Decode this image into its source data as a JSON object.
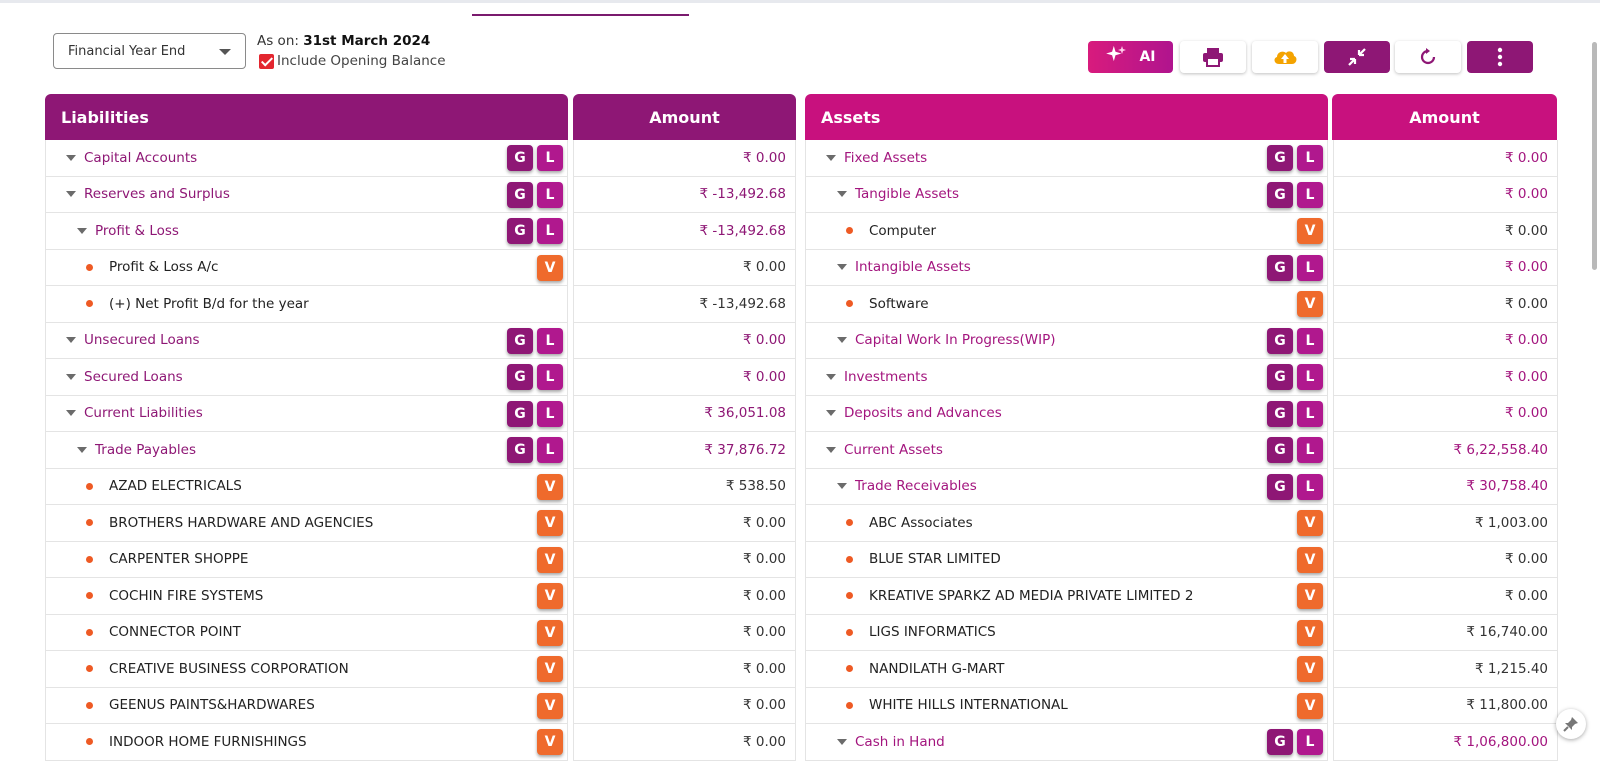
{
  "filters": {
    "period_select": "Financial Year End",
    "as_on_label": "As on:",
    "as_on_date": "31st March 2024",
    "include_opening_balance_label": "Include Opening Balance",
    "include_opening_balance": true
  },
  "toolbar": {
    "ai_label": "AI",
    "buttons": [
      "sparkle-icon",
      "print-icon",
      "cloud-upload-icon",
      "collapse-icon",
      "refresh-icon",
      "more-vertical-icon"
    ]
  },
  "colors": {
    "liabilities_header": "#8e1775",
    "assets_header": "#c8117e",
    "badge_g": "#8e1775",
    "badge_l": "#b0188e",
    "badge_v": "#ef6a2c",
    "leaf_dot": "#ee5a24"
  },
  "liabilities": {
    "header": "Liabilities",
    "amount_header": "Amount",
    "rows": [
      {
        "name": "Capital Accounts",
        "amount": "₹ 0.00",
        "type": "group",
        "level": 0,
        "badges": [
          "G",
          "L"
        ]
      },
      {
        "name": "Reserves and Surplus",
        "amount": "₹ -13,492.68",
        "type": "group",
        "level": 0,
        "badges": [
          "G",
          "L"
        ]
      },
      {
        "name": "Profit & Loss",
        "amount": "₹ -13,492.68",
        "type": "group",
        "level": 1,
        "badges": [
          "G",
          "L"
        ]
      },
      {
        "name": "Profit & Loss A/c",
        "amount": "₹ 0.00",
        "type": "leaf",
        "level": 2,
        "badges": [
          "V"
        ]
      },
      {
        "name": "(+) Net Profit B/d for the year",
        "amount": "₹ -13,492.68",
        "type": "leaf",
        "level": 2,
        "badges": []
      },
      {
        "name": "Unsecured Loans",
        "amount": "₹ 0.00",
        "type": "group",
        "level": 0,
        "badges": [
          "G",
          "L"
        ]
      },
      {
        "name": "Secured Loans",
        "amount": "₹ 0.00",
        "type": "group",
        "level": 0,
        "badges": [
          "G",
          "L"
        ]
      },
      {
        "name": "Current Liabilities",
        "amount": "₹ 36,051.08",
        "type": "group",
        "level": 0,
        "badges": [
          "G",
          "L"
        ]
      },
      {
        "name": "Trade Payables",
        "amount": "₹ 37,876.72",
        "type": "group",
        "level": 1,
        "badges": [
          "G",
          "L"
        ]
      },
      {
        "name": "AZAD ELECTRICALS",
        "amount": "₹ 538.50",
        "type": "leaf",
        "level": 2,
        "badges": [
          "V"
        ]
      },
      {
        "name": "BROTHERS HARDWARE AND AGENCIES",
        "amount": "₹ 0.00",
        "type": "leaf",
        "level": 2,
        "badges": [
          "V"
        ]
      },
      {
        "name": "CARPENTER SHOPPE",
        "amount": "₹ 0.00",
        "type": "leaf",
        "level": 2,
        "badges": [
          "V"
        ]
      },
      {
        "name": "COCHIN FIRE SYSTEMS",
        "amount": "₹ 0.00",
        "type": "leaf",
        "level": 2,
        "badges": [
          "V"
        ]
      },
      {
        "name": "CONNECTOR POINT",
        "amount": "₹ 0.00",
        "type": "leaf",
        "level": 2,
        "badges": [
          "V"
        ]
      },
      {
        "name": "CREATIVE BUSINESS CORPORATION",
        "amount": "₹ 0.00",
        "type": "leaf",
        "level": 2,
        "badges": [
          "V"
        ]
      },
      {
        "name": "GEENUS PAINTS&HARDWARES",
        "amount": "₹ 0.00",
        "type": "leaf",
        "level": 2,
        "badges": [
          "V"
        ]
      },
      {
        "name": "INDOOR HOME FURNISHINGS",
        "amount": "₹ 0.00",
        "type": "leaf",
        "level": 2,
        "badges": [
          "V"
        ]
      }
    ]
  },
  "assets": {
    "header": "Assets",
    "amount_header": "Amount",
    "rows": [
      {
        "name": "Fixed Assets",
        "amount": "₹ 0.00",
        "type": "group",
        "level": 0,
        "badges": [
          "G",
          "L"
        ]
      },
      {
        "name": "Tangible Assets",
        "amount": "₹ 0.00",
        "type": "group",
        "level": 1,
        "badges": [
          "G",
          "L"
        ]
      },
      {
        "name": "Computer",
        "amount": "₹ 0.00",
        "type": "leaf",
        "level": 2,
        "badges": [
          "V"
        ]
      },
      {
        "name": "Intangible Assets",
        "amount": "₹ 0.00",
        "type": "group",
        "level": 1,
        "badges": [
          "G",
          "L"
        ]
      },
      {
        "name": "Software",
        "amount": "₹ 0.00",
        "type": "leaf",
        "level": 2,
        "badges": [
          "V"
        ]
      },
      {
        "name": "Capital Work In Progress(WIP)",
        "amount": "₹ 0.00",
        "type": "group",
        "level": 1,
        "badges": [
          "G",
          "L"
        ]
      },
      {
        "name": "Investments",
        "amount": "₹ 0.00",
        "type": "group",
        "level": 0,
        "badges": [
          "G",
          "L"
        ]
      },
      {
        "name": "Deposits and Advances",
        "amount": "₹ 0.00",
        "type": "group",
        "level": 0,
        "badges": [
          "G",
          "L"
        ]
      },
      {
        "name": "Current Assets",
        "amount": "₹ 6,22,558.40",
        "type": "group",
        "level": 0,
        "badges": [
          "G",
          "L"
        ]
      },
      {
        "name": "Trade Receivables",
        "amount": "₹ 30,758.40",
        "type": "group",
        "level": 1,
        "badges": [
          "G",
          "L"
        ]
      },
      {
        "name": "ABC Associates",
        "amount": "₹ 1,003.00",
        "type": "leaf",
        "level": 2,
        "badges": [
          "V"
        ]
      },
      {
        "name": "BLUE STAR LIMITED",
        "amount": "₹ 0.00",
        "type": "leaf",
        "level": 2,
        "badges": [
          "V"
        ]
      },
      {
        "name": "KREATIVE SPARKZ AD MEDIA PRIVATE LIMITED 2",
        "amount": "₹ 0.00",
        "type": "leaf",
        "level": 2,
        "badges": [
          "V"
        ]
      },
      {
        "name": "LIGS INFORMATICS",
        "amount": "₹ 16,740.00",
        "type": "leaf",
        "level": 2,
        "badges": [
          "V"
        ]
      },
      {
        "name": "NANDILATH G-MART",
        "amount": "₹ 1,215.40",
        "type": "leaf",
        "level": 2,
        "badges": [
          "V"
        ]
      },
      {
        "name": "WHITE HILLS INTERNATIONAL",
        "amount": "₹ 11,800.00",
        "type": "leaf",
        "level": 2,
        "badges": [
          "V"
        ]
      },
      {
        "name": "Cash in Hand",
        "amount": "₹ 1,06,800.00",
        "type": "group",
        "level": 1,
        "badges": [
          "G",
          "L"
        ]
      }
    ]
  }
}
